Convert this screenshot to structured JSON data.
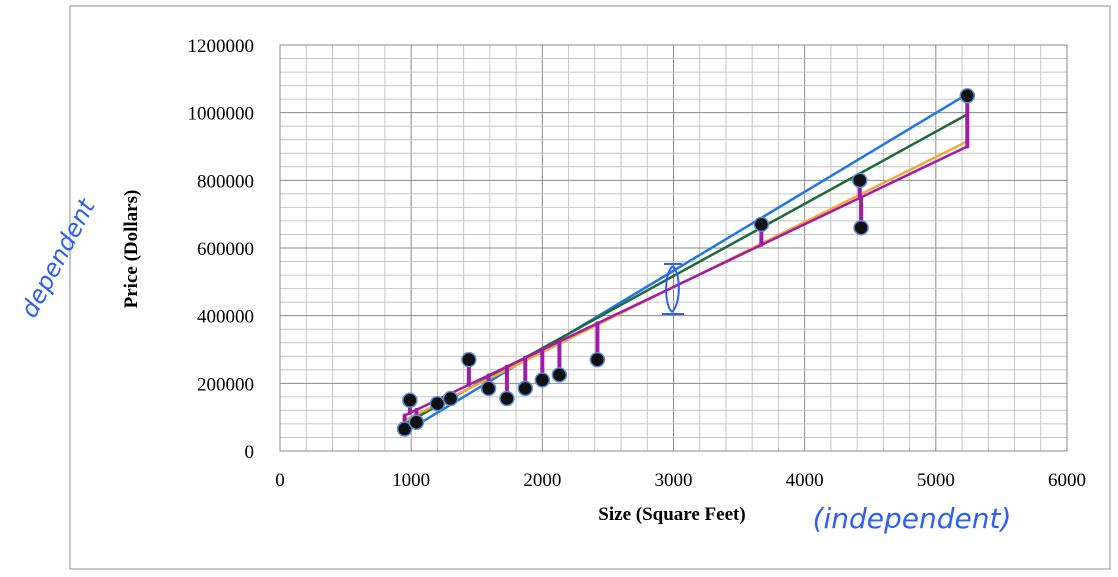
{
  "chart_data": {
    "type": "scatter",
    "title": "",
    "xlabel": "Size (Square Feet)",
    "ylabel": "Price (Dollars)",
    "xlim": [
      0,
      6000
    ],
    "ylim": [
      0,
      1200000
    ],
    "x_ticks": [
      "0",
      "1000",
      "2000",
      "3000",
      "4000",
      "5000",
      "6000"
    ],
    "y_ticks": [
      "0",
      "200000",
      "400000",
      "600000",
      "800000",
      "1000000",
      "1200000"
    ],
    "grid": true,
    "x_minor_step": 200,
    "y_minor_step": 40000,
    "series": [
      {
        "x": [
          950,
          990,
          1040,
          1200,
          1300,
          1440,
          1590,
          1730,
          1870,
          2000,
          2130,
          2420,
          3670,
          4420,
          4430,
          5240
        ],
        "y": [
          65000,
          150000,
          85000,
          140000,
          155000,
          270000,
          185000,
          155000,
          185000,
          210000,
          225000,
          270000,
          670000,
          800000,
          660000,
          1050000
        ]
      }
    ],
    "fit_lines": [
      {
        "color": "#1f77e6",
        "x": [
          950,
          5240
        ],
        "y": [
          55000,
          1055000
        ]
      },
      {
        "color": "#1e6b3a",
        "x": [
          950,
          5240
        ],
        "y": [
          80000,
          995000
        ]
      },
      {
        "color": "#f2a93b",
        "x": [
          950,
          5240
        ],
        "y": [
          90000,
          915000
        ]
      },
      {
        "color": "#a11aa8",
        "x": [
          950,
          5240
        ],
        "y": [
          105000,
          900000
        ]
      }
    ],
    "residual_color": "#a11aa8",
    "point_color": "#111111",
    "point_ring_color": "#5b8dd8"
  },
  "annotations": {
    "dependent": "dependent",
    "independent": "(independent)"
  }
}
